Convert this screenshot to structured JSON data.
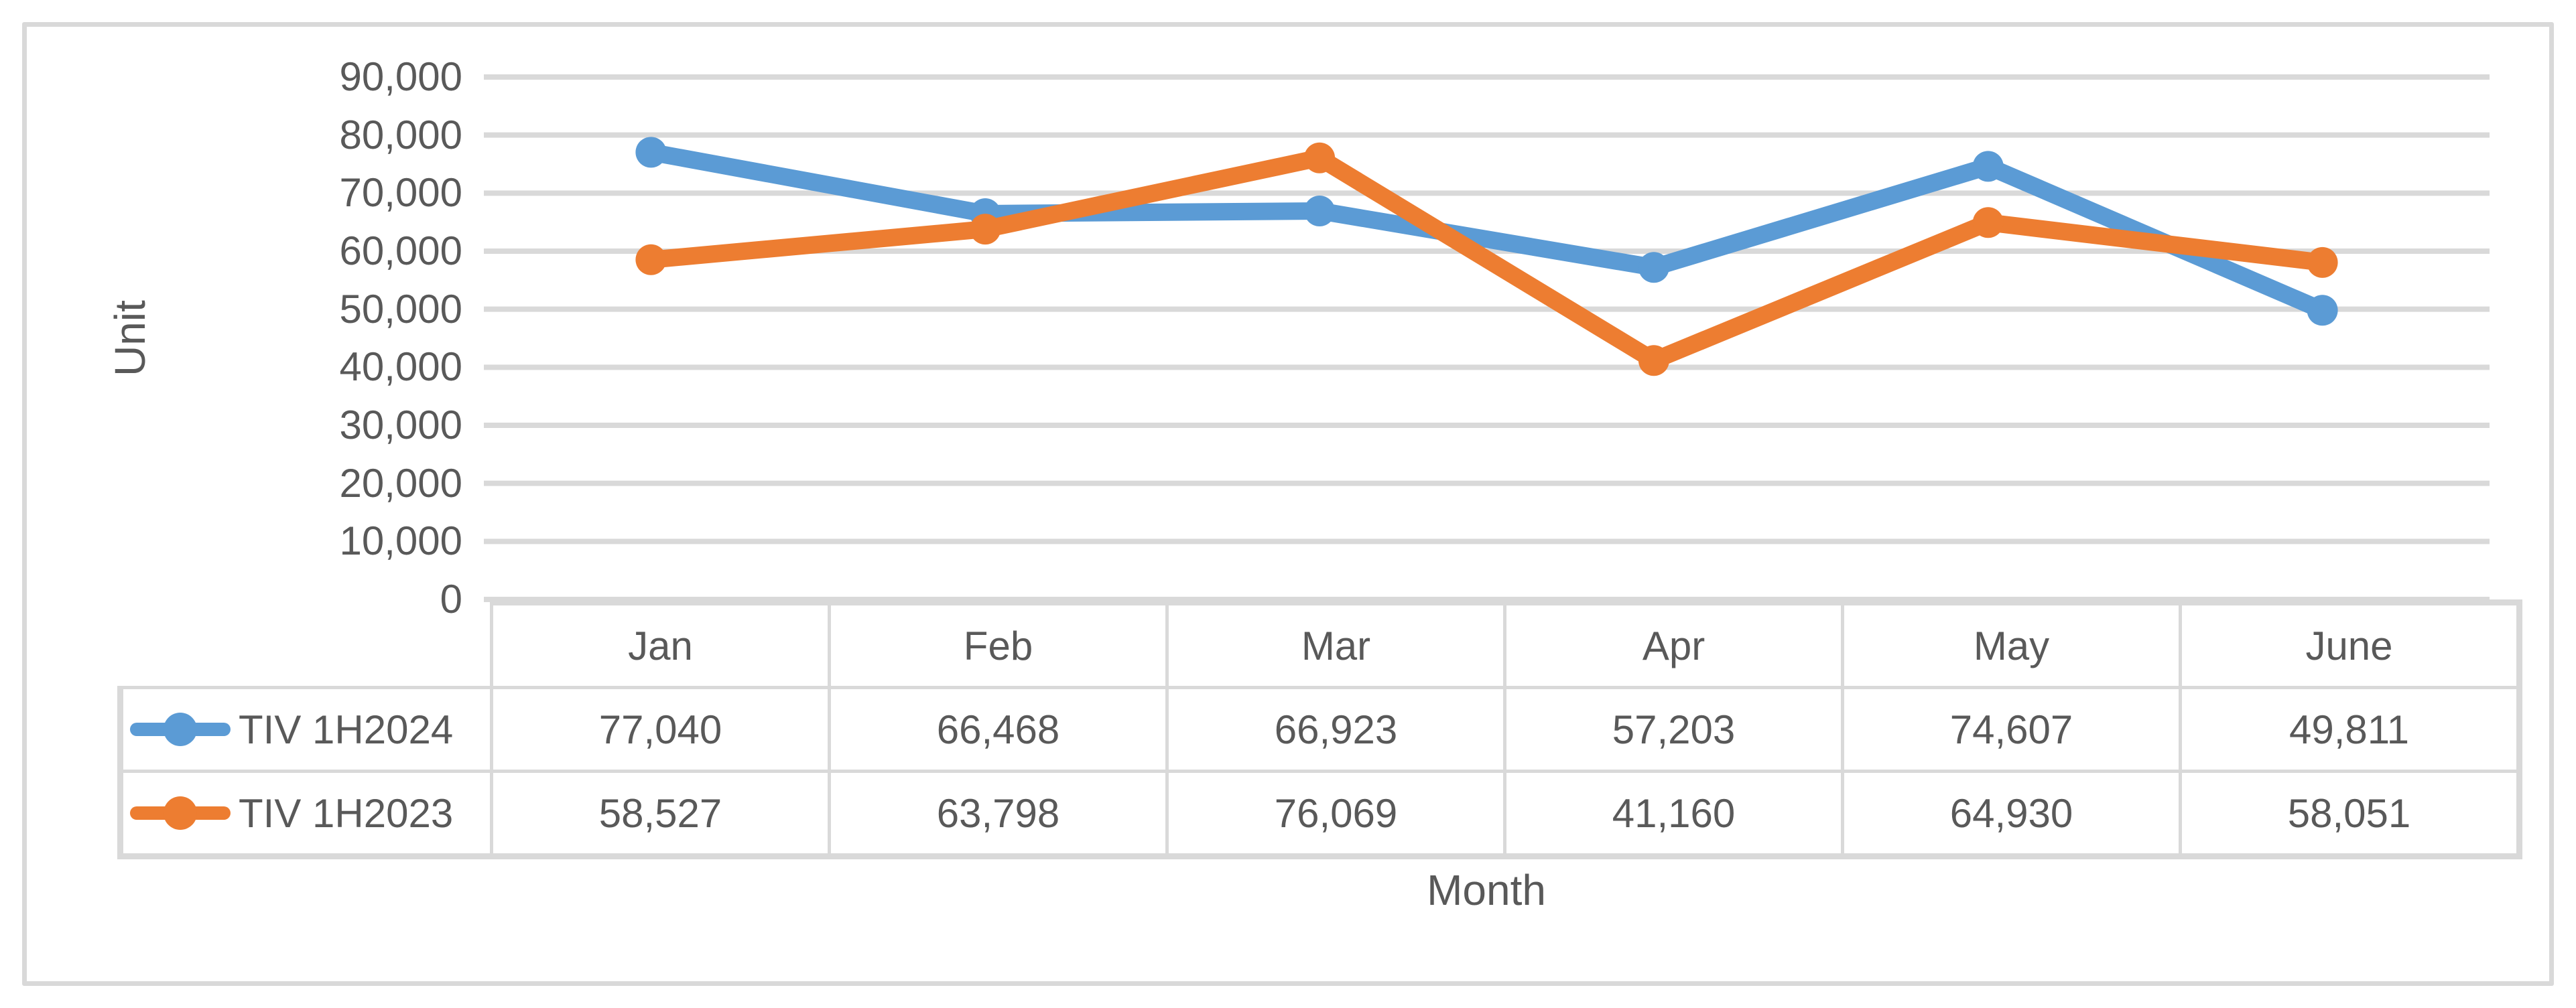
{
  "figure": {
    "background": "#ffffff",
    "border_color": "#d9d9d9",
    "text_color": "#595959"
  },
  "chart_data": {
    "type": "line",
    "title": "",
    "xlabel": "Month",
    "ylabel": "Unit",
    "categories": [
      "Jan",
      "Feb",
      "Mar",
      "Apr",
      "May",
      "June"
    ],
    "series": [
      {
        "name": "TIV 1H2024",
        "color": "#5b9bd5",
        "values": [
          77040,
          66468,
          66923,
          57203,
          74607,
          49811
        ],
        "display": [
          "77,040",
          "66,468",
          "66,923",
          "57,203",
          "74,607",
          "49,811"
        ]
      },
      {
        "name": "TIV 1H2023",
        "color": "#ed7d31",
        "values": [
          58527,
          63798,
          76069,
          41160,
          64930,
          58051
        ],
        "display": [
          "58,527",
          "63,798",
          "76,069",
          "41,160",
          "64,930",
          "58,051"
        ]
      }
    ],
    "ylim": [
      0,
      90000
    ],
    "y_tick_step": 10000,
    "y_ticks": [
      "90,000",
      "80,000",
      "70,000",
      "60,000",
      "50,000",
      "40,000",
      "30,000",
      "20,000",
      "10,000",
      "0"
    ],
    "gridlines": true,
    "gridline_color": "#d9d9d9",
    "legend_position": "table-left",
    "marker": "circle"
  }
}
